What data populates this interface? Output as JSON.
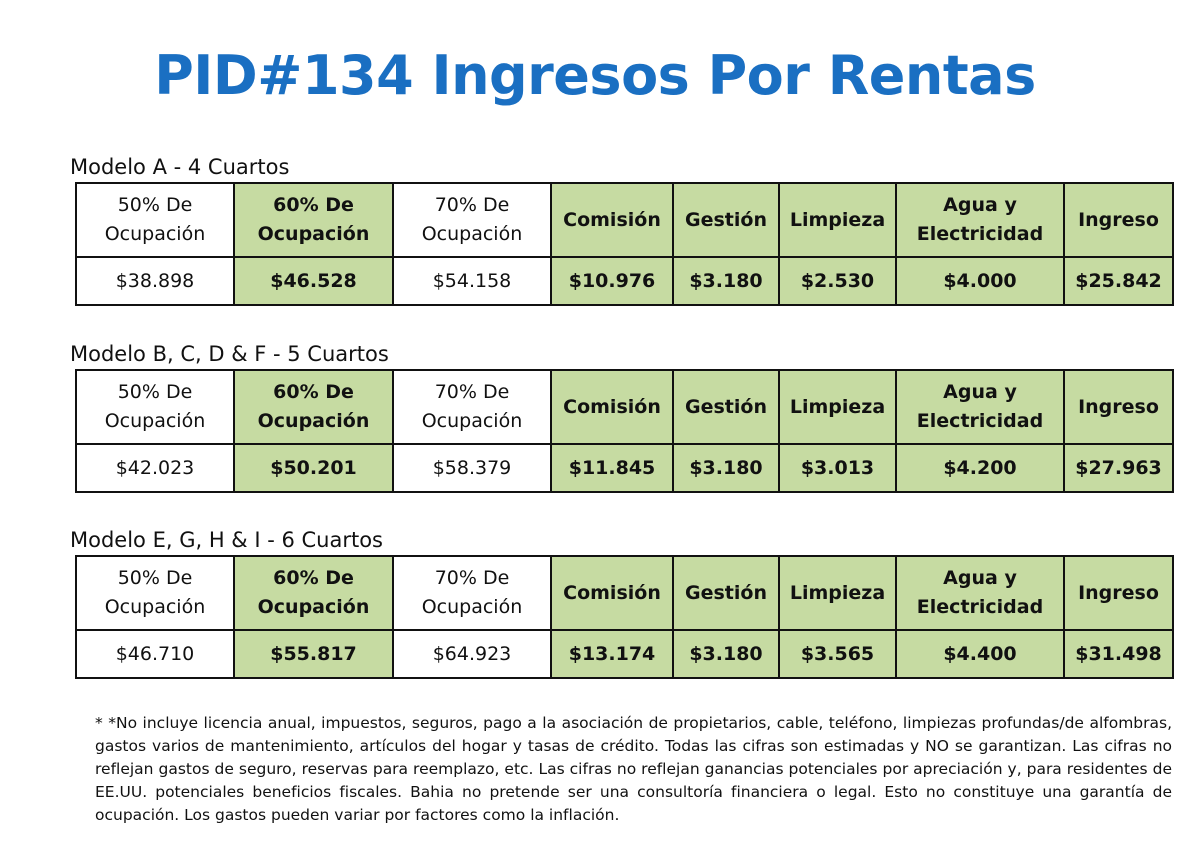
{
  "title": "PID#134 Ingresos Por Rentas",
  "tables": [
    {
      "caption": "Modelo A - 4 Cuartos",
      "header": [
        "50% De\nOcupación",
        "60% De\nOcupación",
        "70% De\nOcupación",
        "Comisión",
        "Gestión",
        "Limpieza",
        "Agua y\nElectricidad",
        "Ingreso"
      ],
      "row": [
        "$38.898",
        "$46.528",
        "$54.158",
        "$10.976",
        "$3.180",
        "$2.530",
        "$4.000",
        "$25.842"
      ]
    },
    {
      "caption": "Modelo B, C, D & F - 5 Cuartos",
      "header": [
        "50% De\nOcupación",
        "60% De\nOcupación",
        "70% De\nOcupación",
        "Comisión",
        "Gestión",
        "Limpieza",
        "Agua y\nElectricidad",
        "Ingreso"
      ],
      "row": [
        "$42.023",
        "$50.201",
        "$58.379",
        "$11.845",
        "$3.180",
        "$3.013",
        "$4.200",
        "$27.963"
      ]
    },
    {
      "caption": "Modelo E, G, H & I - 6 Cuartos",
      "header": [
        "50% De\nOcupación",
        "60% De\nOcupación",
        "70% De\nOcupación",
        "Comisión",
        "Gestión",
        "Limpieza",
        "Agua y\nElectricidad",
        "Ingreso"
      ],
      "row": [
        "$46.710",
        "$55.817",
        "$64.923",
        "$13.174",
        "$3.180",
        "$3.565",
        "$4.400",
        "$31.498"
      ]
    }
  ],
  "footnote": "* *No incluye licencia anual, impuestos, seguros, pago a la asociación de propietarios, cable, teléfono, limpiezas profundas/de alfombras, gastos varios de mantenimiento, artículos del hogar y tasas de crédito. Todas las cifras son estimadas y NO se garantizan. Las cifras no reflejan gastos de seguro, reservas para reemplazo, etc. Las cifras no reflejan ganancias potenciales por apreciación y, para residentes de EE.UU. potenciales beneficios fiscales. Bahia no pretende ser una consultoría financiera o legal. Esto no constituye una garantía de ocupación. Los gastos pueden variar por factores como la inflación."
}
